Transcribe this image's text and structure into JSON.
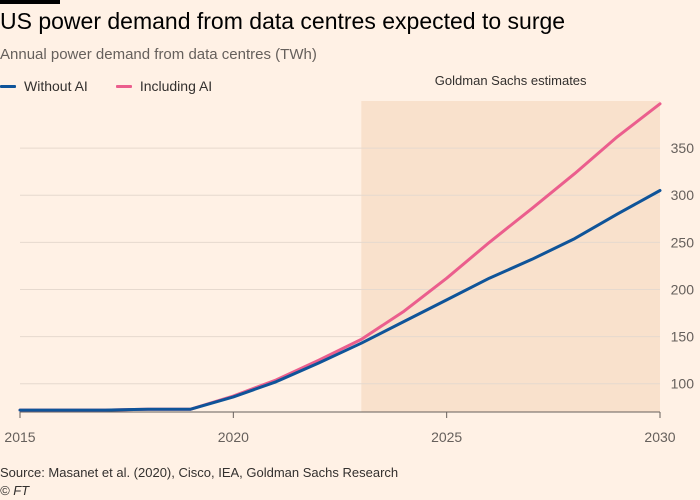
{
  "title": "US power demand from data centres expected to surge",
  "subtitle": "Annual power demand from data centres (TWh)",
  "source": "Source: Masanet et al. (2020), Cisco, IEA, Goldman Sachs Research",
  "credit": "© FT",
  "colors": {
    "background": "#fff1e5",
    "without_ai": "#0f5499",
    "including_ai": "#eb5e8d",
    "shade": "#f9e1cc",
    "grid": "#e6d9ce"
  },
  "chart_data": {
    "type": "line",
    "x": [
      2015,
      2016,
      2017,
      2018,
      2019,
      2020,
      2021,
      2022,
      2023,
      2024,
      2025,
      2026,
      2027,
      2028,
      2029,
      2030
    ],
    "series": [
      {
        "name": "Without AI",
        "values": [
          72,
          72,
          72,
          73,
          73,
          86,
          102,
          122,
          143,
          166,
          189,
          212,
          232,
          254,
          280,
          305
        ]
      },
      {
        "name": "Including AI",
        "values": [
          72,
          72,
          72,
          73,
          73,
          87,
          104,
          125,
          147,
          177,
          212,
          250,
          286,
          323,
          362,
          397
        ]
      }
    ],
    "xlim": [
      2015,
      2030
    ],
    "ylim": [
      70,
      400
    ],
    "x_ticks": [
      2015,
      2020,
      2025,
      2030
    ],
    "y_ticks": [
      100,
      150,
      200,
      250,
      300,
      350
    ],
    "y_axis_side": "right",
    "grid": true,
    "legend": "top-left",
    "shaded_region": {
      "x_start": 2023,
      "x_end": 2030,
      "label": "Goldman Sachs estimates"
    }
  }
}
